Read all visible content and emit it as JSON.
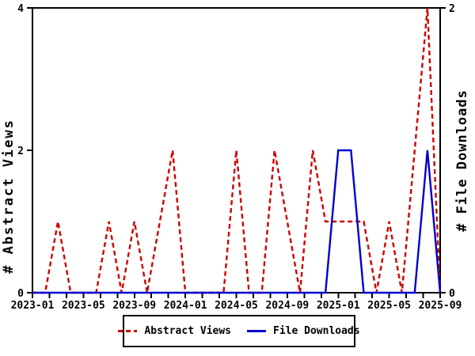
{
  "chart_data": {
    "type": "line",
    "title": "",
    "x": [
      "2023-01",
      "2023-02",
      "2023-03",
      "2023-04",
      "2023-05",
      "2023-06",
      "2023-07",
      "2023-08",
      "2023-09",
      "2023-10",
      "2023-11",
      "2023-12",
      "2024-01",
      "2024-02",
      "2024-03",
      "2024-04",
      "2024-05",
      "2024-06",
      "2024-07",
      "2024-08",
      "2024-09",
      "2024-10",
      "2024-11",
      "2024-12",
      "2025-01",
      "2025-02",
      "2025-03",
      "2025-04",
      "2025-05",
      "2025-06",
      "2025-07",
      "2025-08",
      "2025-09"
    ],
    "x_labeled_every": 4,
    "x_minor_per_interval": 2,
    "x_tick_labels": [
      "2023-01",
      "2023-05",
      "2023-09",
      "2024-01",
      "2024-05",
      "2024-09",
      "2025-01",
      "2025-05",
      "2025-09"
    ],
    "left_axis": {
      "label": "# Abstract Views",
      "min": 0,
      "max": 4,
      "ticks": [
        0,
        2,
        4
      ]
    },
    "right_axis": {
      "label": "# File Downloads",
      "min": 0,
      "max": 2,
      "ticks": [
        0,
        2
      ]
    },
    "grid": false,
    "legend_position": "bottom",
    "series": [
      {
        "name": "Abstract Views",
        "axis": "left",
        "color": "#CC0000",
        "style": "dashed",
        "values": [
          0,
          0,
          1,
          0,
          0,
          0,
          1,
          0,
          1,
          0,
          1,
          2,
          0,
          0,
          0,
          0,
          2,
          0,
          0,
          2,
          1,
          0,
          2,
          1,
          1,
          1,
          1,
          0,
          1,
          0,
          2,
          4,
          0
        ]
      },
      {
        "name": "File Downloads",
        "axis": "right",
        "color": "#0000CC",
        "style": "solid",
        "values": [
          0,
          0,
          0,
          0,
          0,
          0,
          0,
          0,
          0,
          0,
          0,
          0,
          0,
          0,
          0,
          0,
          0,
          0,
          0,
          0,
          0,
          0,
          0,
          0,
          1,
          1,
          0,
          0,
          0,
          0,
          0,
          1,
          0
        ]
      }
    ],
    "legend": {
      "items": [
        {
          "label": "Abstract Views",
          "color": "#CC0000",
          "style": "dashed"
        },
        {
          "label": "File Downloads",
          "color": "#0000CC",
          "style": "solid"
        }
      ]
    },
    "colors": {
      "frame": "#000000",
      "background": "#FFFFFF",
      "text": "#000000"
    }
  }
}
